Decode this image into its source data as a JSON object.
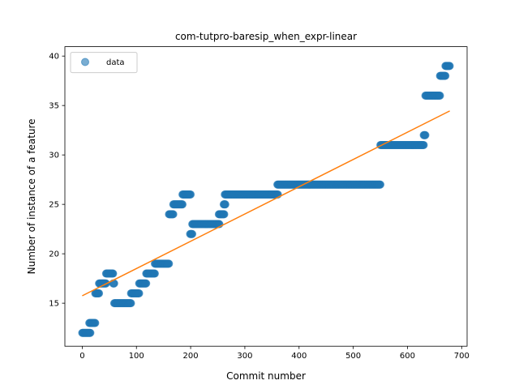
{
  "chart_data": {
    "type": "scatter",
    "title": "com-tutpro-baresip_when_expr-linear",
    "xlabel": "Commit number",
    "ylabel": "Number of instance of a feature",
    "xlim": [
      -32,
      710
    ],
    "ylim": [
      10.65,
      40.95
    ],
    "xticks": [
      0,
      100,
      200,
      300,
      400,
      500,
      600,
      700
    ],
    "yticks": [
      15,
      20,
      25,
      30,
      35,
      40
    ],
    "grid": false,
    "legend": {
      "position": "top-left",
      "entries": [
        "data"
      ]
    },
    "colors": {
      "data": "#1f77b4",
      "fit": "#ff7f0e"
    },
    "series": [
      {
        "name": "data",
        "kind": "scatter-runs",
        "runs": [
          {
            "y": 12,
            "x_start": 0,
            "x_end": 15
          },
          {
            "y": 13,
            "x_start": 13,
            "x_end": 24
          },
          {
            "y": 16,
            "x_start": 24,
            "x_end": 31
          },
          {
            "y": 17,
            "x_start": 31,
            "x_end": 44
          },
          {
            "y": 18,
            "x_start": 44,
            "x_end": 57
          },
          {
            "y": 17,
            "x_start": 57,
            "x_end": 59
          },
          {
            "y": 15,
            "x_start": 59,
            "x_end": 90
          },
          {
            "y": 16,
            "x_start": 90,
            "x_end": 105
          },
          {
            "y": 17,
            "x_start": 105,
            "x_end": 118
          },
          {
            "y": 18,
            "x_start": 118,
            "x_end": 134
          },
          {
            "y": 19,
            "x_start": 134,
            "x_end": 160
          },
          {
            "y": 24,
            "x_start": 160,
            "x_end": 168
          },
          {
            "y": 25,
            "x_start": 168,
            "x_end": 185
          },
          {
            "y": 26,
            "x_start": 185,
            "x_end": 200
          },
          {
            "y": 22,
            "x_start": 199,
            "x_end": 203
          },
          {
            "y": 23,
            "x_start": 203,
            "x_end": 253
          },
          {
            "y": 24,
            "x_start": 252,
            "x_end": 262
          },
          {
            "y": 25,
            "x_start": 261,
            "x_end": 264
          },
          {
            "y": 26,
            "x_start": 263,
            "x_end": 361
          },
          {
            "y": 27,
            "x_start": 360,
            "x_end": 550
          },
          {
            "y": 31,
            "x_start": 550,
            "x_end": 630
          },
          {
            "y": 32,
            "x_start": 630,
            "x_end": 633
          },
          {
            "y": 36,
            "x_start": 633,
            "x_end": 660
          },
          {
            "y": 38,
            "x_start": 660,
            "x_end": 670
          },
          {
            "y": 39,
            "x_start": 670,
            "x_end": 678
          }
        ]
      },
      {
        "name": "",
        "kind": "line",
        "x": [
          0,
          678
        ],
        "y": [
          15.75,
          34.45
        ]
      }
    ]
  }
}
